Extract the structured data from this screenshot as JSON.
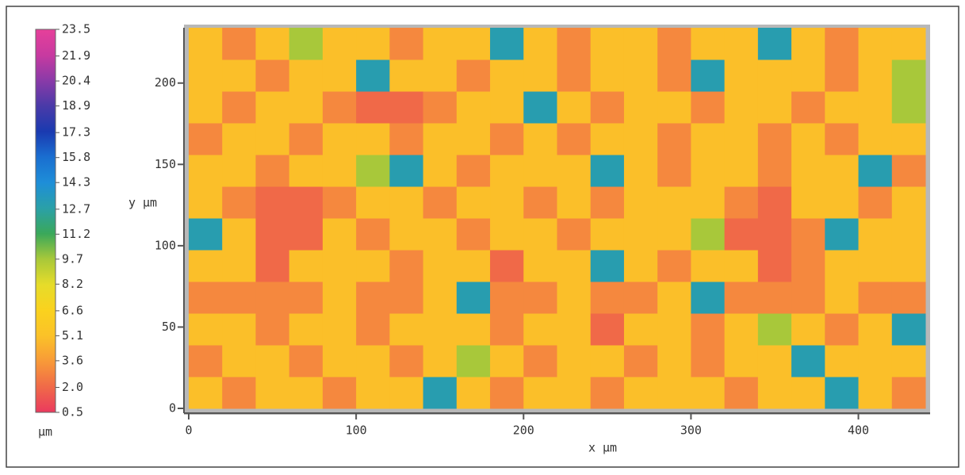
{
  "chart_data": {
    "type": "heatmap",
    "xlabel": "x µm",
    "ylabel": "y µm",
    "colorbar_label": "µm",
    "xlim": [
      0,
      440
    ],
    "ylim": [
      0,
      234
    ],
    "xticks": [
      0,
      100,
      200,
      300,
      400
    ],
    "yticks": [
      0,
      50,
      100,
      150,
      200
    ],
    "zlim": [
      0.5,
      23.5
    ],
    "zticks": [
      0.5,
      {
        "value": 2,
        "label": "2.0"
      },
      3.6,
      5.1,
      6.6,
      8.2,
      9.7,
      11.2,
      12.7,
      14.3,
      15.8,
      17.3,
      18.9,
      20.4,
      21.9,
      23.5
    ],
    "colorscale": [
      "#ea3a5e",
      "#f06a48",
      "#f89a38",
      "#fbc228",
      "#fad21e",
      "#e6dc2a",
      "#a8c83a",
      "#3aa85a",
      "#2aa0a8",
      "#1e8ed8",
      "#1a6ed0",
      "#1a3ab0",
      "#4a3aa8",
      "#8a3aa8",
      "#c83aa0",
      "#e6409a"
    ],
    "z": [
      [
        5,
        3,
        5,
        5,
        3,
        5,
        5,
        13,
        5,
        3,
        5,
        5,
        3,
        5,
        5,
        5,
        3,
        5,
        5,
        13,
        5,
        3
      ],
      [
        3,
        5,
        5,
        3,
        5,
        5,
        3,
        5,
        9.7,
        5,
        3,
        5,
        5,
        3,
        5,
        3,
        5,
        5,
        13,
        5,
        5,
        5
      ],
      [
        5,
        5,
        3,
        5,
        5,
        3,
        5,
        5,
        5,
        3,
        5,
        5,
        2,
        5,
        5,
        3,
        5,
        9.7,
        5,
        3,
        5,
        13
      ],
      [
        3,
        3,
        3,
        3,
        5,
        3,
        3,
        5,
        13,
        3,
        3,
        5,
        3,
        3,
        5,
        13,
        3,
        3,
        3,
        5,
        3,
        3
      ],
      [
        5,
        5,
        2,
        5,
        5,
        5,
        3,
        5,
        5,
        2,
        5,
        5,
        13,
        5,
        3,
        5,
        5,
        2,
        3,
        5,
        5,
        5
      ],
      [
        13,
        5,
        2,
        2,
        5,
        3,
        5,
        5,
        3,
        5,
        5,
        3,
        5,
        5,
        5,
        9.7,
        2,
        2,
        3,
        13,
        5,
        5
      ],
      [
        5,
        3,
        2,
        2,
        3,
        5,
        5,
        3,
        5,
        5,
        3,
        5,
        3,
        5,
        5,
        5,
        3,
        2,
        5,
        5,
        3,
        5
      ],
      [
        5,
        5,
        3,
        5,
        5,
        9.7,
        13,
        5,
        3,
        5,
        5,
        5,
        13,
        5,
        3,
        5,
        5,
        3,
        5,
        5,
        13,
        3
      ],
      [
        3,
        5,
        5,
        3,
        5,
        5,
        3,
        5,
        5,
        3,
        5,
        3,
        5,
        5,
        3,
        5,
        5,
        3,
        5,
        3,
        5,
        5
      ],
      [
        5,
        3,
        5,
        5,
        3,
        2,
        2,
        3,
        5,
        5,
        13,
        5,
        3,
        5,
        5,
        3,
        5,
        5,
        3,
        5,
        5,
        9.7
      ],
      [
        5,
        5,
        3,
        5,
        5,
        13,
        5,
        5,
        3,
        5,
        5,
        3,
        5,
        5,
        3,
        13,
        5,
        5,
        5,
        3,
        5,
        9.7
      ],
      [
        5,
        3,
        5,
        9.7,
        5,
        5,
        3,
        5,
        5,
        13,
        5,
        3,
        5,
        5,
        3,
        5,
        5,
        13,
        5,
        3,
        5,
        5
      ]
    ]
  }
}
